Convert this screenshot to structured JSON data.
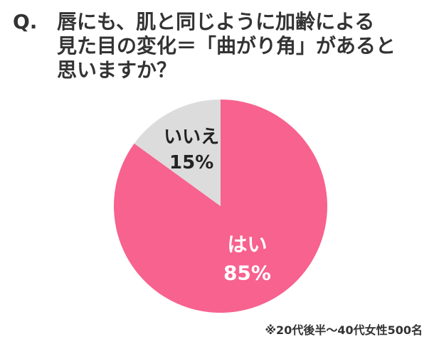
{
  "question": {
    "prefix": "Q.",
    "lines": [
      "唇にも、肌と同じように加齢による",
      "見た目の変化＝「曲がり角」があると",
      "思いますか？"
    ]
  },
  "chart_data": {
    "type": "pie",
    "title": "",
    "categories": [
      "はい",
      "いいえ"
    ],
    "values": [
      85,
      15
    ],
    "value_labels": [
      "85%",
      "15%"
    ],
    "colors": [
      "#f7628e",
      "#dcdcdc"
    ],
    "label_colors": [
      "#ffffff",
      "#222222"
    ],
    "start_angle": "12 o'clock",
    "direction": "clockwise",
    "legend": "none"
  },
  "footnote": "※20代後半〜40代女性500名"
}
